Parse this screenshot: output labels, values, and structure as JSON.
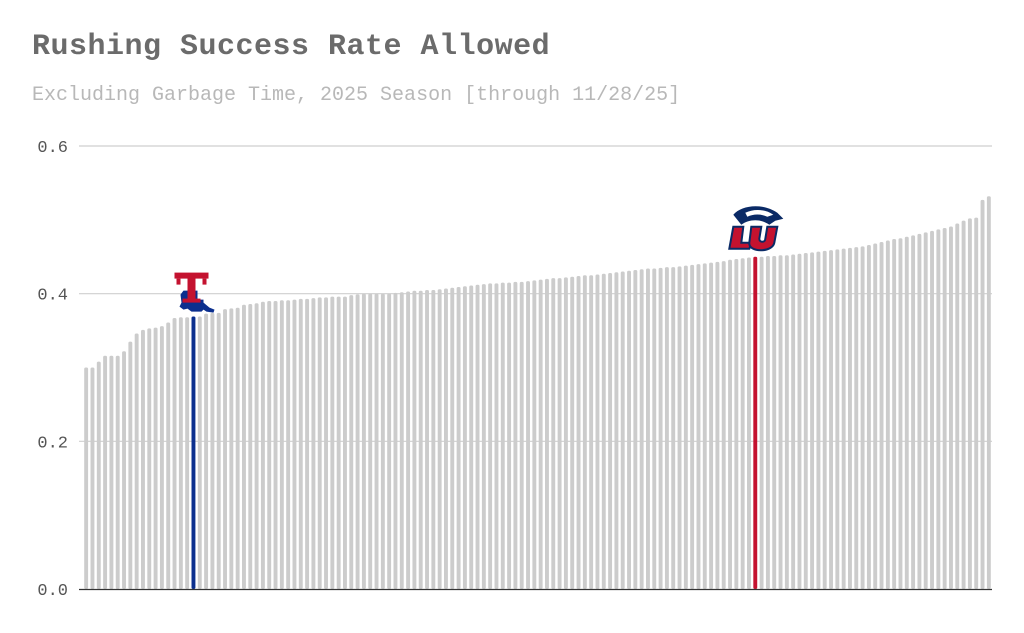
{
  "chart_data": {
    "type": "bar",
    "title": "Rushing Success Rate Allowed",
    "subtitle": "Excluding Garbage Time, 2025 Season [through 11/28/25]",
    "xlabel": "",
    "ylabel": "",
    "ylim": [
      0,
      0.6
    ],
    "yticks": [
      0.0,
      0.2,
      0.4,
      0.6
    ],
    "ytick_labels": [
      "0.0",
      "0.2",
      "0.4",
      "0.6"
    ],
    "grid": true,
    "sorted": "ascending",
    "default_color": "#cccccc",
    "values": [
      0.3,
      0.3,
      0.308,
      0.316,
      0.316,
      0.316,
      0.322,
      0.335,
      0.346,
      0.351,
      0.353,
      0.354,
      0.356,
      0.361,
      0.367,
      0.368,
      0.368,
      0.369,
      0.369,
      0.373,
      0.374,
      0.374,
      0.379,
      0.38,
      0.381,
      0.385,
      0.386,
      0.387,
      0.389,
      0.39,
      0.39,
      0.391,
      0.391,
      0.392,
      0.393,
      0.393,
      0.394,
      0.395,
      0.395,
      0.396,
      0.396,
      0.396,
      0.398,
      0.399,
      0.4,
      0.4,
      0.4,
      0.4,
      0.4,
      0.401,
      0.402,
      0.403,
      0.404,
      0.404,
      0.405,
      0.405,
      0.406,
      0.407,
      0.408,
      0.409,
      0.41,
      0.411,
      0.412,
      0.413,
      0.414,
      0.414,
      0.415,
      0.415,
      0.416,
      0.416,
      0.417,
      0.418,
      0.419,
      0.42,
      0.421,
      0.421,
      0.422,
      0.423,
      0.424,
      0.425,
      0.425,
      0.426,
      0.427,
      0.428,
      0.429,
      0.43,
      0.431,
      0.432,
      0.433,
      0.434,
      0.434,
      0.435,
      0.436,
      0.436,
      0.437,
      0.438,
      0.439,
      0.44,
      0.441,
      0.442,
      0.443,
      0.444,
      0.446,
      0.447,
      0.448,
      0.449,
      0.45,
      0.45,
      0.451,
      0.451,
      0.452,
      0.452,
      0.453,
      0.454,
      0.455,
      0.456,
      0.457,
      0.458,
      0.459,
      0.46,
      0.461,
      0.462,
      0.463,
      0.464,
      0.466,
      0.468,
      0.47,
      0.472,
      0.474,
      0.475,
      0.477,
      0.479,
      0.481,
      0.483,
      0.485,
      0.487,
      0.489,
      0.491,
      0.495,
      0.499,
      0.502,
      0.503,
      0.527,
      0.532
    ],
    "highlights": [
      {
        "index": 17,
        "color": "#0b2f8e",
        "logo": "Louisiana Tech logo (red T over blue state shape)"
      },
      {
        "index": 106,
        "color": "#c4122f",
        "logo": "Liberty logo (eagle head over LU)"
      }
    ]
  }
}
